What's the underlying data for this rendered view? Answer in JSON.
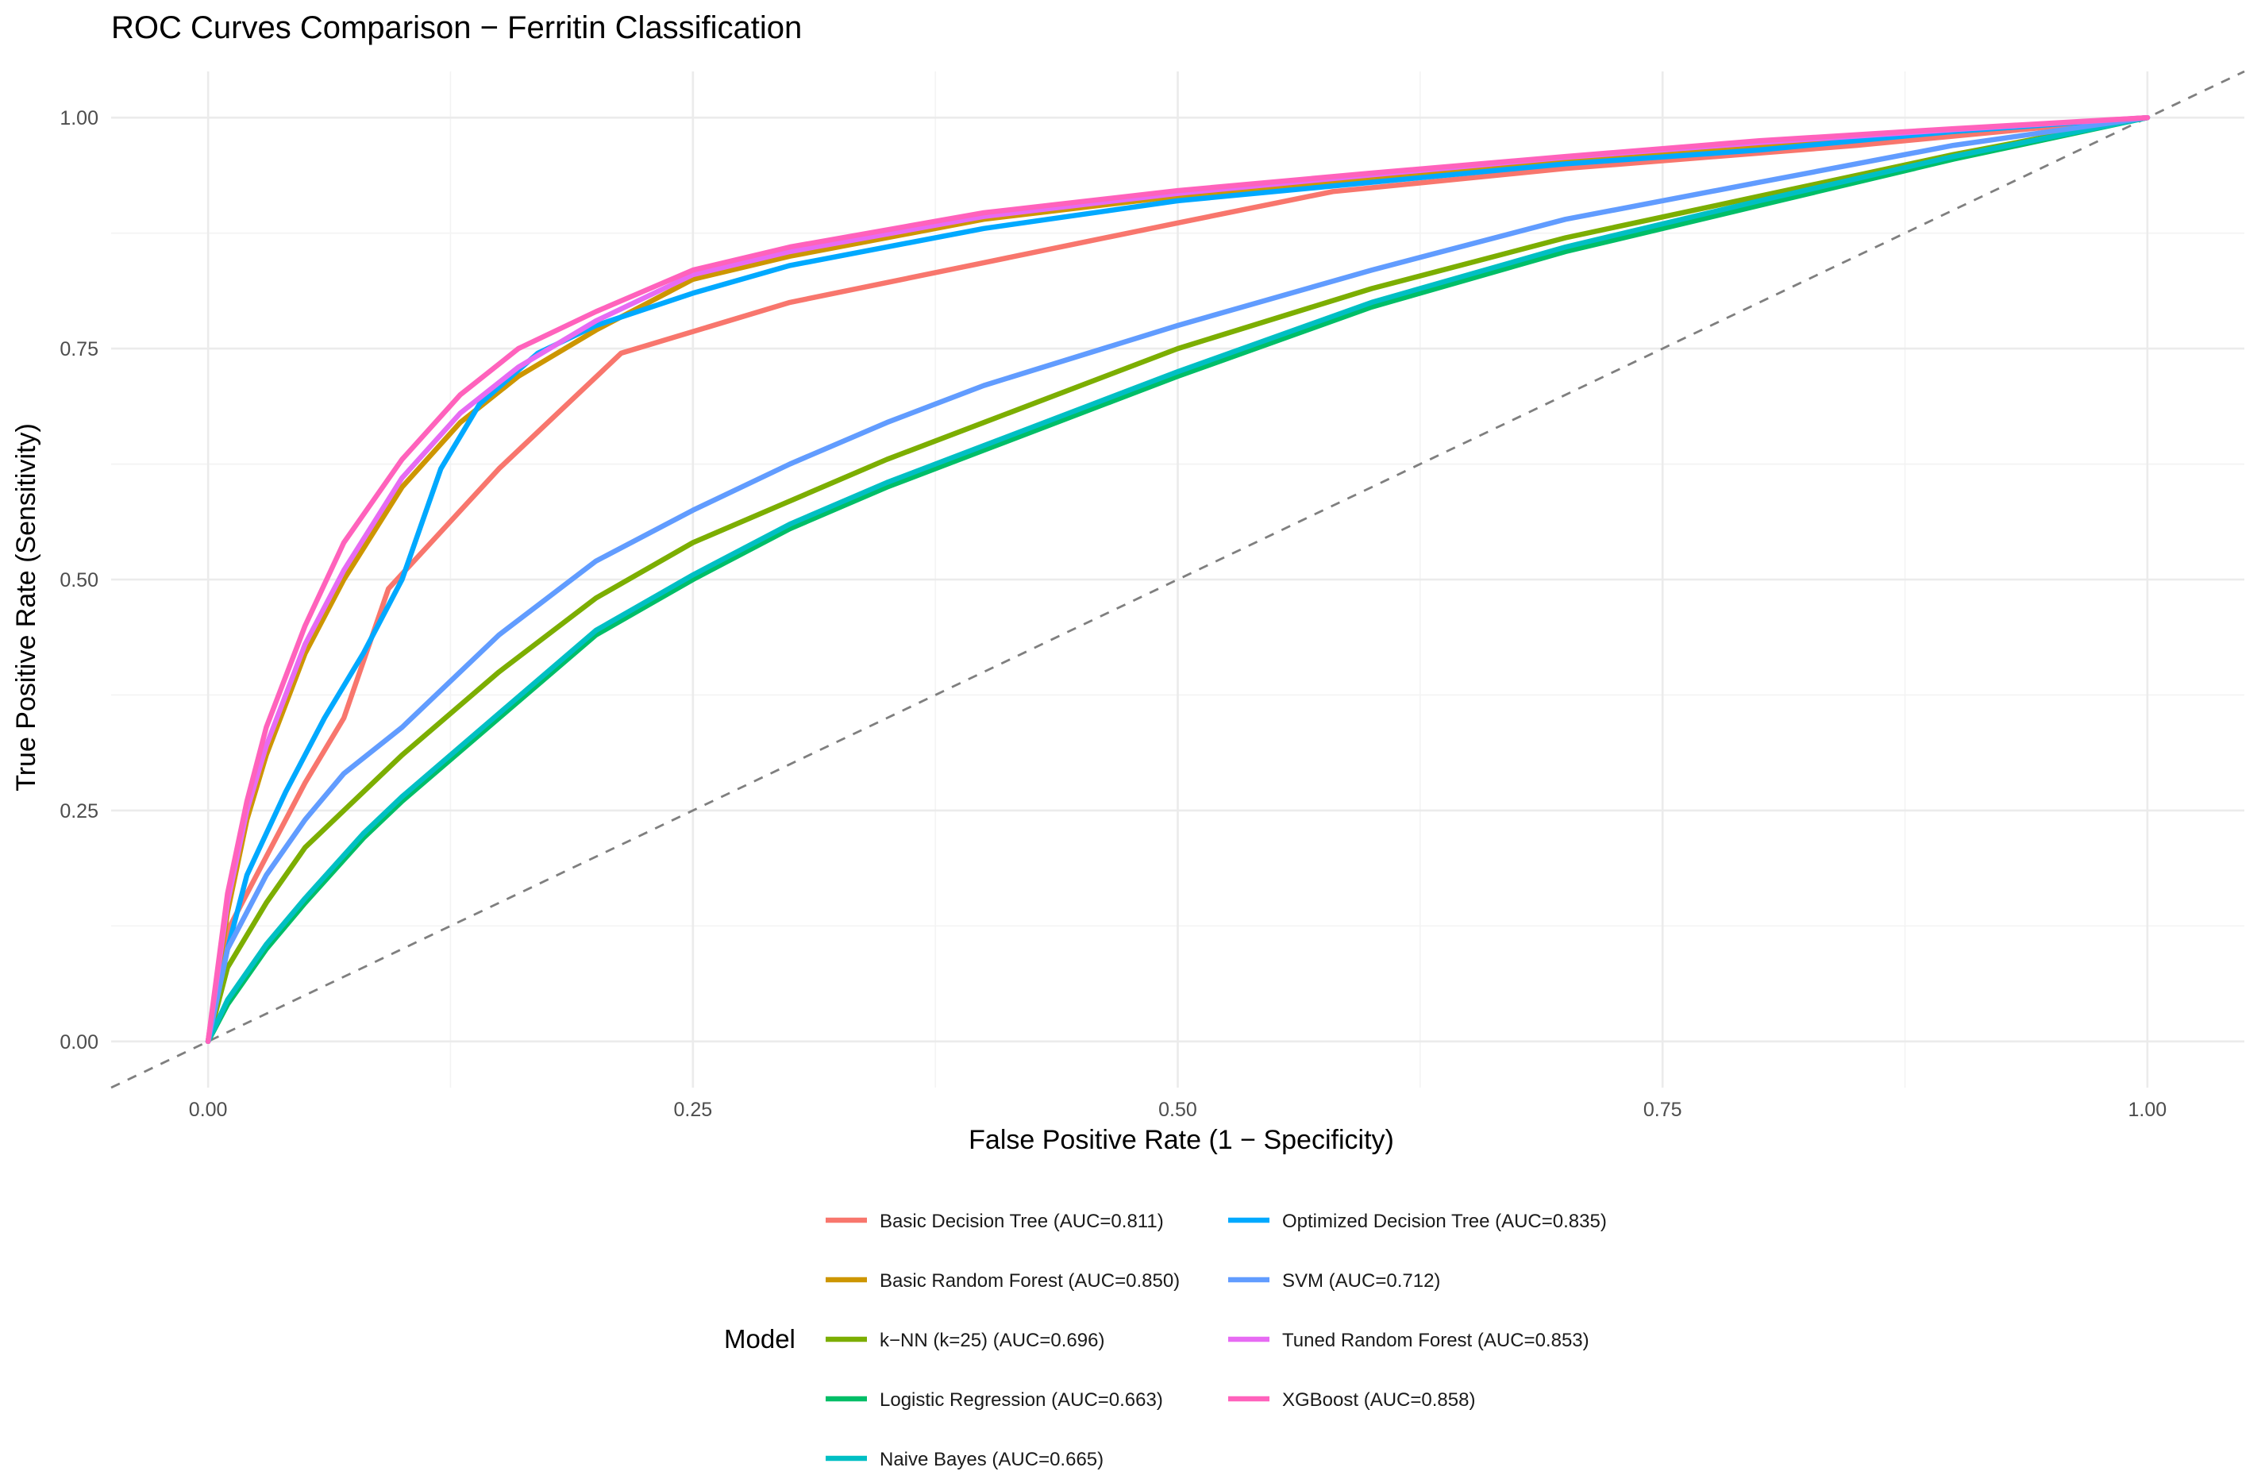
{
  "chart_data": {
    "type": "line",
    "title": "ROC Curves Comparison − Ferritin Classification",
    "xlabel": "False Positive Rate (1 − Specificity)",
    "ylabel": "True Positive Rate (Sensitivity)",
    "xlim": [
      -0.05,
      1.05
    ],
    "ylim": [
      -0.05,
      1.05
    ],
    "x_ticks": [
      0.0,
      0.25,
      0.5,
      0.75,
      1.0
    ],
    "x_tick_labels": [
      "0.00",
      "0.25",
      "0.50",
      "0.75",
      "1.00"
    ],
    "y_ticks": [
      0.0,
      0.25,
      0.5,
      0.75,
      1.0
    ],
    "y_tick_labels": [
      "0.00",
      "0.25",
      "0.50",
      "0.75",
      "1.00"
    ],
    "grid": true,
    "legend": {
      "title": "Model",
      "position": "bottom",
      "columns": 2
    },
    "reference_line": {
      "x": [
        -0.05,
        1.05
      ],
      "y": [
        -0.05,
        1.05
      ],
      "style": "dashed",
      "color": "#7f7f7f"
    },
    "series": [
      {
        "name": "Basic Decision Tree (AUC=0.811)",
        "color": "#F8766D",
        "x": [
          0,
          0.01,
          0.03,
          0.05,
          0.07,
          0.093,
          0.15,
          0.213,
          0.3,
          0.4,
          0.5,
          0.58,
          0.7,
          0.85,
          1.0
        ],
        "y": [
          0,
          0.12,
          0.2,
          0.28,
          0.35,
          0.49,
          0.62,
          0.745,
          0.8,
          0.843,
          0.886,
          0.92,
          0.945,
          0.97,
          1.0
        ]
      },
      {
        "name": "Basic Random Forest (AUC=0.850)",
        "color": "#CD9600",
        "x": [
          0,
          0.01,
          0.02,
          0.03,
          0.05,
          0.07,
          0.1,
          0.13,
          0.16,
          0.2,
          0.25,
          0.3,
          0.4,
          0.5,
          0.6,
          0.7,
          0.8,
          0.9,
          1.0
        ],
        "y": [
          0,
          0.14,
          0.24,
          0.31,
          0.42,
          0.5,
          0.6,
          0.67,
          0.72,
          0.77,
          0.825,
          0.85,
          0.89,
          0.915,
          0.935,
          0.955,
          0.97,
          0.985,
          1.0
        ]
      },
      {
        "name": "k−NN (k=25) (AUC=0.696)",
        "color": "#7CAE00",
        "x": [
          0,
          0.01,
          0.03,
          0.05,
          0.08,
          0.1,
          0.15,
          0.2,
          0.25,
          0.3,
          0.35,
          0.4,
          0.5,
          0.6,
          0.7,
          0.8,
          0.9,
          1.0
        ],
        "y": [
          0,
          0.08,
          0.15,
          0.21,
          0.27,
          0.31,
          0.4,
          0.48,
          0.54,
          0.585,
          0.63,
          0.67,
          0.75,
          0.815,
          0.87,
          0.915,
          0.96,
          1.0
        ]
      },
      {
        "name": "Logistic Regression (AUC=0.663)",
        "color": "#00BE67",
        "x": [
          0,
          0.01,
          0.03,
          0.05,
          0.08,
          0.1,
          0.15,
          0.2,
          0.25,
          0.3,
          0.35,
          0.4,
          0.5,
          0.6,
          0.7,
          0.8,
          0.9,
          1.0
        ],
        "y": [
          0,
          0.04,
          0.1,
          0.15,
          0.22,
          0.26,
          0.35,
          0.44,
          0.5,
          0.555,
          0.6,
          0.64,
          0.72,
          0.795,
          0.855,
          0.905,
          0.955,
          1.0
        ]
      },
      {
        "name": "Naive Bayes (AUC=0.665)",
        "color": "#00BFC4",
        "x": [
          0,
          0.01,
          0.03,
          0.05,
          0.08,
          0.1,
          0.15,
          0.2,
          0.25,
          0.3,
          0.35,
          0.4,
          0.5,
          0.6,
          0.7,
          0.8,
          0.9,
          1.0
        ],
        "y": [
          0,
          0.045,
          0.105,
          0.155,
          0.225,
          0.265,
          0.355,
          0.445,
          0.505,
          0.56,
          0.605,
          0.645,
          0.725,
          0.8,
          0.86,
          0.91,
          0.958,
          1.0
        ]
      },
      {
        "name": "Optimized Decision Tree (AUC=0.835)",
        "color": "#00A9FF",
        "x": [
          0,
          0.01,
          0.02,
          0.04,
          0.06,
          0.08,
          0.1,
          0.12,
          0.14,
          0.17,
          0.2,
          0.25,
          0.3,
          0.4,
          0.5,
          0.6,
          0.7,
          0.8,
          0.9,
          1.0
        ],
        "y": [
          0,
          0.1,
          0.18,
          0.27,
          0.35,
          0.42,
          0.5,
          0.62,
          0.69,
          0.745,
          0.775,
          0.81,
          0.84,
          0.88,
          0.91,
          0.93,
          0.95,
          0.965,
          0.985,
          1.0
        ]
      },
      {
        "name": "SVM (AUC=0.712)",
        "color": "#619CFF",
        "x": [
          0,
          0.01,
          0.03,
          0.05,
          0.07,
          0.1,
          0.15,
          0.2,
          0.25,
          0.3,
          0.35,
          0.4,
          0.5,
          0.6,
          0.7,
          0.8,
          0.9,
          1.0
        ],
        "y": [
          0,
          0.1,
          0.18,
          0.24,
          0.29,
          0.34,
          0.44,
          0.52,
          0.575,
          0.625,
          0.67,
          0.71,
          0.775,
          0.835,
          0.89,
          0.93,
          0.97,
          1.0
        ]
      },
      {
        "name": "Tuned Random Forest (AUC=0.853)",
        "color": "#E76BF3",
        "x": [
          0,
          0.01,
          0.02,
          0.03,
          0.05,
          0.07,
          0.1,
          0.13,
          0.16,
          0.2,
          0.25,
          0.3,
          0.4,
          0.5,
          0.6,
          0.7,
          0.8,
          0.9,
          1.0
        ],
        "y": [
          0,
          0.15,
          0.25,
          0.32,
          0.43,
          0.51,
          0.61,
          0.68,
          0.73,
          0.78,
          0.83,
          0.855,
          0.893,
          0.918,
          0.938,
          0.957,
          0.973,
          0.987,
          1.0
        ]
      },
      {
        "name": "XGBoost (AUC=0.858)",
        "color": "#FF62BC",
        "x": [
          0,
          0.01,
          0.02,
          0.03,
          0.05,
          0.07,
          0.1,
          0.13,
          0.16,
          0.2,
          0.25,
          0.3,
          0.4,
          0.5,
          0.6,
          0.7,
          0.8,
          0.9,
          1.0
        ],
        "y": [
          0,
          0.16,
          0.26,
          0.34,
          0.45,
          0.54,
          0.63,
          0.7,
          0.75,
          0.79,
          0.835,
          0.86,
          0.897,
          0.921,
          0.94,
          0.958,
          0.975,
          0.988,
          1.0
        ]
      }
    ]
  }
}
